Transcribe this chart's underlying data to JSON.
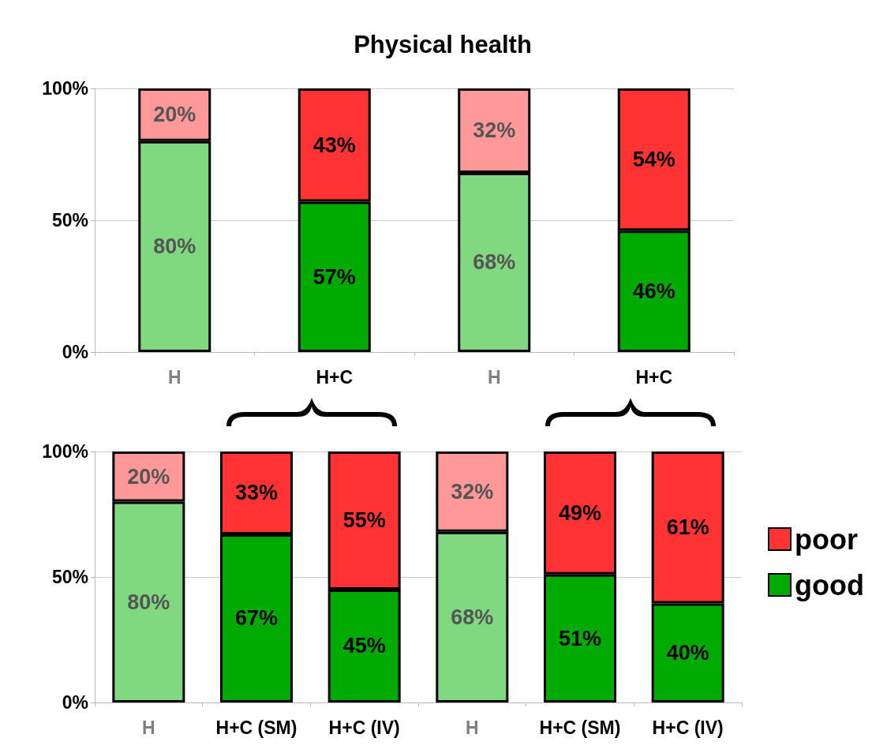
{
  "chart_data": [
    {
      "type": "bar",
      "title": "Physical health",
      "categories": [
        "H",
        "H+C",
        "H",
        "H+C"
      ],
      "stacked": true,
      "grid": "y",
      "legend": false,
      "ylim": [
        0,
        100
      ],
      "yticks": [
        {
          "value": 0,
          "label": "0%"
        },
        {
          "value": 50,
          "label": "50%"
        },
        {
          "value": 100,
          "label": "100%"
        }
      ],
      "series": [
        {
          "color": "#00aa00",
          "colors": [
            "#80d880",
            "#00aa00",
            "#80d880",
            "#00aa00"
          ],
          "values": [
            80,
            57,
            68,
            46
          ],
          "value_labels": [
            "80%",
            "57%",
            "68%",
            "46%"
          ]
        },
        {
          "color": "#ff3333",
          "colors": [
            "#ff9999",
            "#ff3333",
            "#ff9999",
            "#ff3333"
          ],
          "values": [
            20,
            43,
            32,
            54
          ],
          "value_labels": [
            "20%",
            "43%",
            "32%",
            "54%"
          ]
        }
      ]
    },
    {
      "type": "bar",
      "categories": [
        "H",
        "H+C (SM)",
        "H+C (IV)",
        "H",
        "H+C (SM)",
        "H+C (IV)"
      ],
      "stacked": true,
      "grid": "y",
      "legend": "right",
      "ylim": [
        0,
        100
      ],
      "yticks": [
        {
          "value": 0,
          "label": "0%"
        },
        {
          "value": 50,
          "label": "50%"
        },
        {
          "value": 100,
          "label": "100%"
        }
      ],
      "series": [
        {
          "name": "good",
          "color": "#00aa00",
          "colors": [
            "#80d880",
            "#00aa00",
            "#00aa00",
            "#80d880",
            "#00aa00",
            "#00aa00"
          ],
          "values": [
            80,
            67,
            45,
            68,
            51,
            39.5
          ],
          "value_labels": [
            "80%",
            "67%",
            "45%",
            "68%",
            "51%",
            "40%"
          ]
        },
        {
          "name": "poor",
          "color": "#ff3333",
          "colors": [
            "#ff9999",
            "#ff3333",
            "#ff3333",
            "#ff9999",
            "#ff3333",
            "#ff3333"
          ],
          "values": [
            20,
            33,
            55,
            32,
            49,
            60.5
          ],
          "value_labels": [
            "20%",
            "33%",
            "55%",
            "32%",
            "49%",
            "61%"
          ]
        }
      ]
    }
  ]
}
